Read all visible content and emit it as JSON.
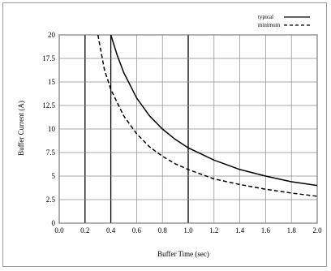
{
  "chart_data": {
    "type": "line",
    "title": "",
    "xlabel": "Buffer Time (sec)",
    "ylabel": "Buffer  Current  (A)",
    "xlim": [
      0,
      2.0
    ],
    "ylim": [
      0,
      20
    ],
    "x_ticks": [
      "0.0",
      "0.2",
      "0.4",
      "0.6",
      "0.8",
      "1.0",
      "1.2",
      "1.4",
      "1.6",
      "1.8",
      "2.0"
    ],
    "y_ticks": [
      "0",
      "2.5",
      "5",
      "7.5",
      "10",
      "12.5",
      "15",
      "17.5",
      "20"
    ],
    "grid": true,
    "legend_position": "top-right",
    "series": [
      {
        "name": "typical",
        "style": "solid",
        "x": [
          0.4,
          0.45,
          0.5,
          0.6,
          0.7,
          0.8,
          0.9,
          1.0,
          1.2,
          1.4,
          1.6,
          1.8,
          2.0
        ],
        "y": [
          20.0,
          17.8,
          16.0,
          13.3,
          11.4,
          10.0,
          8.9,
          8.0,
          6.7,
          5.7,
          5.0,
          4.4,
          4.0
        ]
      },
      {
        "name": "minimum",
        "style": "dashed",
        "x": [
          0.3,
          0.35,
          0.4,
          0.5,
          0.6,
          0.7,
          0.8,
          0.9,
          1.0,
          1.2,
          1.4,
          1.6,
          1.8,
          2.0
        ],
        "y": [
          20.0,
          16.3,
          14.2,
          11.4,
          9.5,
          8.1,
          7.1,
          6.3,
          5.7,
          4.7,
          4.1,
          3.6,
          3.2,
          2.85
        ]
      }
    ]
  }
}
